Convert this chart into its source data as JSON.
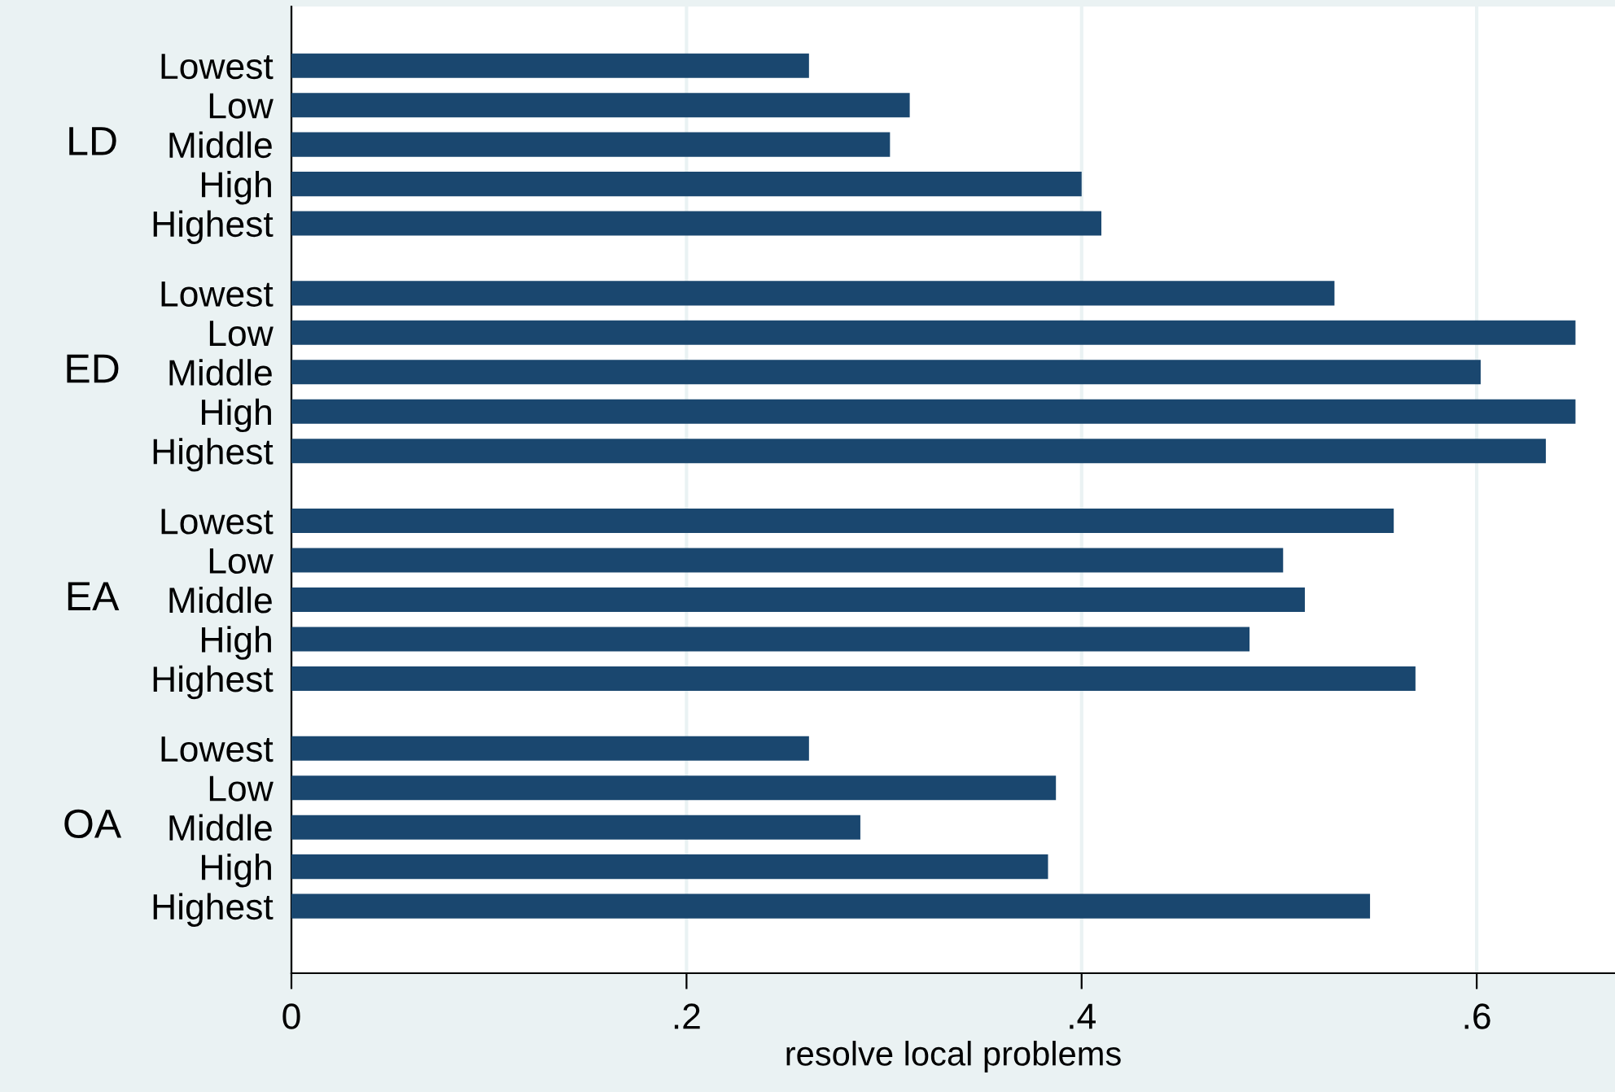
{
  "chart_data": {
    "type": "bar",
    "orientation": "horizontal",
    "xlabel": "resolve local problems",
    "categories": [
      "Lowest",
      "Low",
      "Middle",
      "High",
      "Highest",
      "Lowest",
      "Low",
      "Middle",
      "High",
      "Highest",
      "Lowest",
      "Low",
      "Middle",
      "High",
      "Highest",
      "Lowest",
      "Low",
      "Middle",
      "High",
      "Highest"
    ],
    "values": [
      0.262,
      0.313,
      0.303,
      0.4,
      0.41,
      0.528,
      0.65,
      0.602,
      0.65,
      0.635,
      0.558,
      0.502,
      0.513,
      0.485,
      0.569,
      0.262,
      0.387,
      0.288,
      0.383,
      0.546
    ],
    "color": "#1a476f",
    "annotations": [
      "LD",
      "ED",
      "EA",
      "OA"
    ],
    "xlim": [
      0,
      0.67
    ],
    "xticks": [
      {
        "value": 0,
        "label": "0"
      },
      {
        "value": 0.2,
        "label": ".2"
      },
      {
        "value": 0.4,
        "label": ".4"
      },
      {
        "value": 0.6,
        "label": ".6"
      }
    ],
    "grid": "x"
  }
}
